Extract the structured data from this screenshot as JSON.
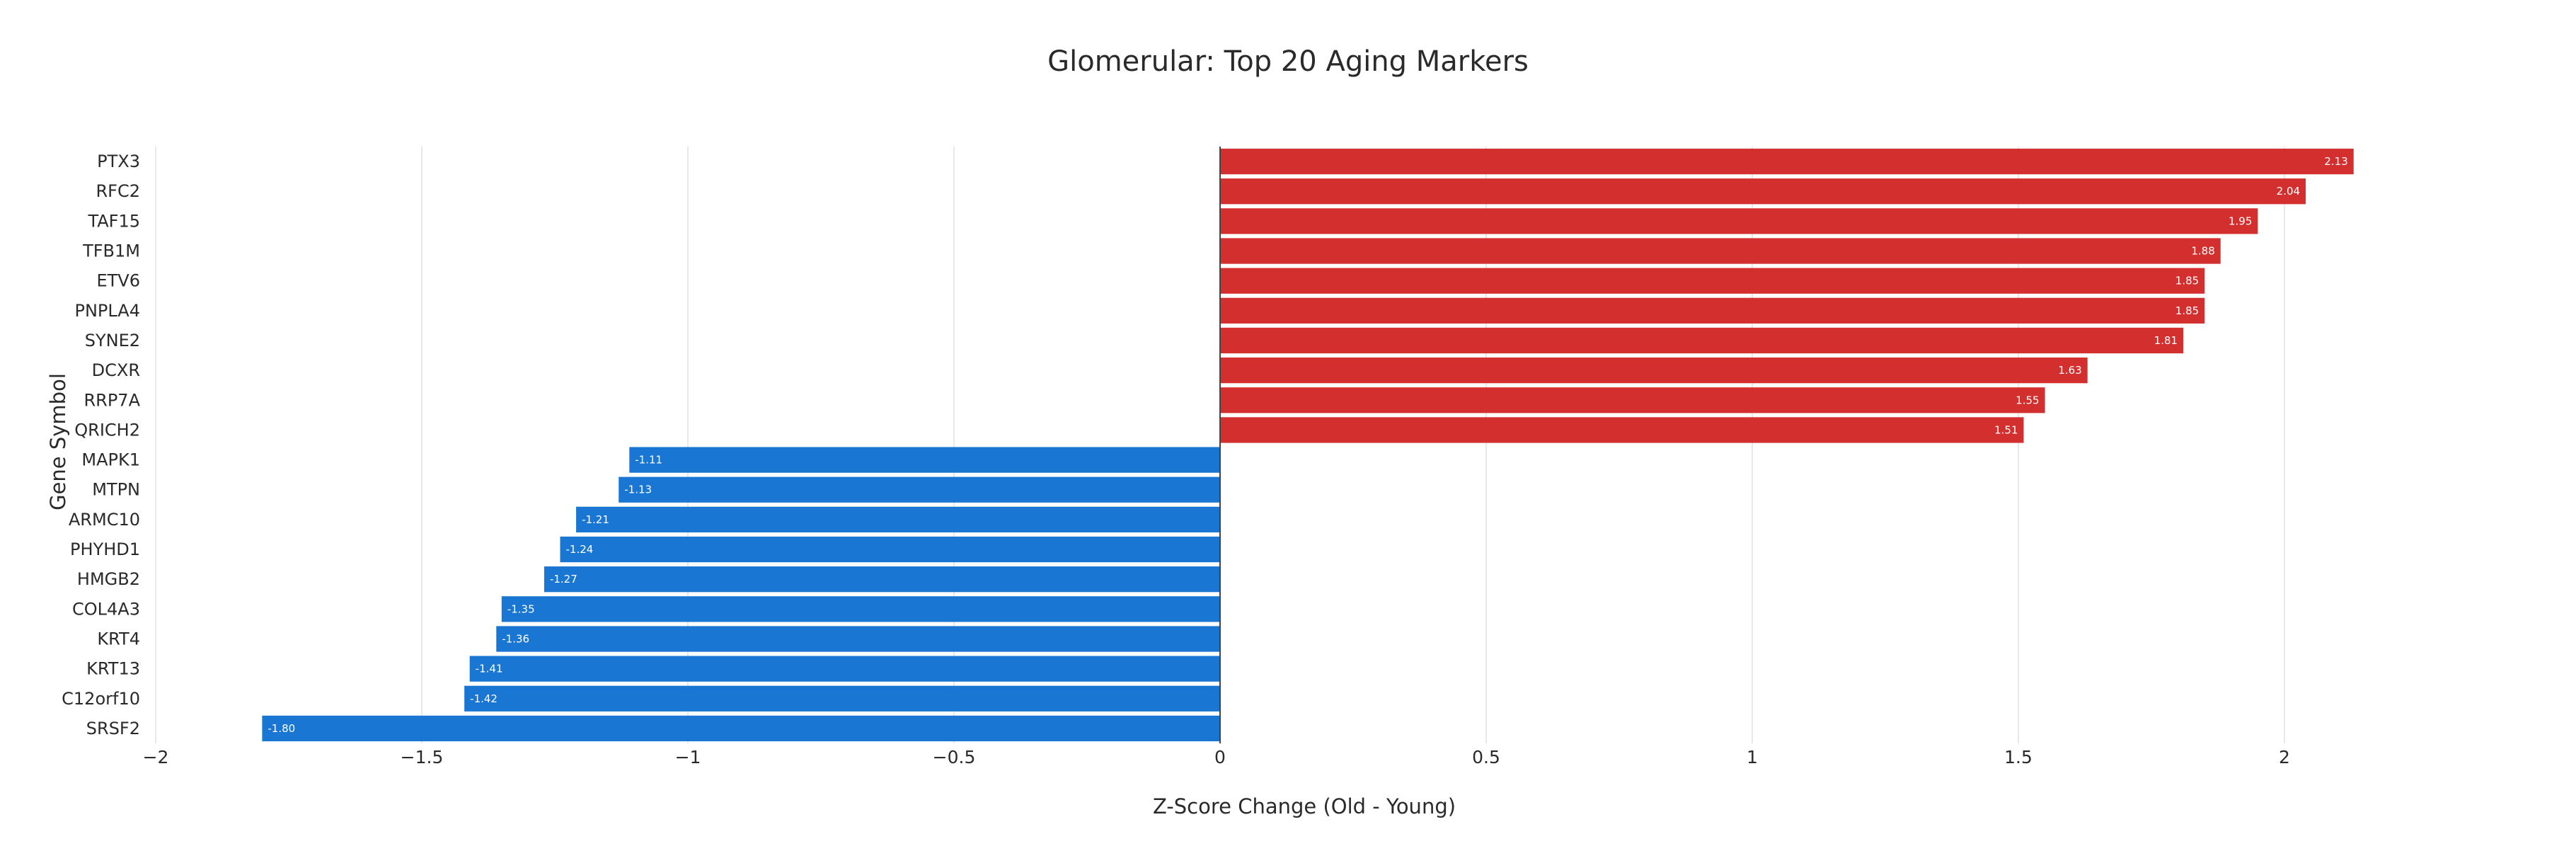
{
  "chart_data": {
    "type": "bar",
    "orientation": "horizontal",
    "title": "Glomerular: Top 20 Aging Markers",
    "xlabel": "Z-Score Change (Old - Young)",
    "ylabel": "Gene Symbol",
    "xlim": [
      -2,
      2.5
    ],
    "x_ticks": [
      -2,
      -1.5,
      -1,
      -0.5,
      0,
      0.5,
      1,
      1.5,
      2
    ],
    "x_tick_labels": [
      "−2",
      "−1.5",
      "−1",
      "−0.5",
      "0",
      "0.5",
      "1",
      "1.5",
      "2"
    ],
    "grid": true,
    "legend": "none",
    "colors": {
      "positive": "#d32f2f",
      "negative": "#1976d2",
      "zero_line": "#444444"
    },
    "categories": [
      "PTX3",
      "RFC2",
      "TAF15",
      "TFB1M",
      "ETV6",
      "PNPLA4",
      "SYNE2",
      "DCXR",
      "RRP7A",
      "QRICH2",
      "MAPK1",
      "MTPN",
      "ARMC10",
      "PHYHD1",
      "HMGB2",
      "COL4A3",
      "KRT4",
      "KRT13",
      "C12orf10",
      "SRSF2"
    ],
    "values": [
      2.13,
      2.04,
      1.95,
      1.88,
      1.85,
      1.85,
      1.81,
      1.63,
      1.55,
      1.51,
      -1.11,
      -1.13,
      -1.21,
      -1.24,
      -1.27,
      -1.35,
      -1.36,
      -1.41,
      -1.42,
      -1.8
    ],
    "value_labels": [
      "2.13",
      "2.04",
      "1.95",
      "1.88",
      "1.85",
      "1.85",
      "1.81",
      "1.63",
      "1.55",
      "1.51",
      "-1.11",
      "-1.13",
      "-1.21",
      "-1.24",
      "-1.27",
      "-1.35",
      "-1.36",
      "-1.41",
      "-1.42",
      "-1.80"
    ]
  }
}
